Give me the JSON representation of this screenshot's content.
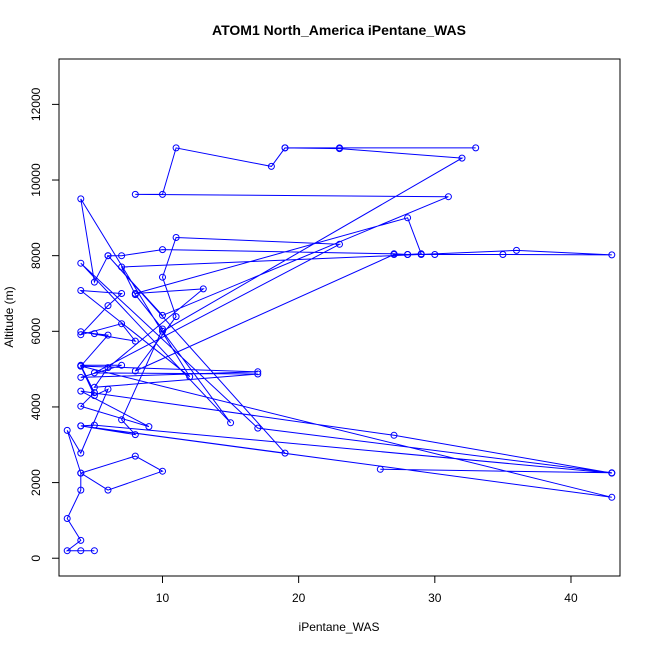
{
  "chart_data": {
    "type": "line",
    "title": "ATOM1 North_America iPentane_WAS",
    "xlabel": "iPentane_WAS",
    "ylabel": "Altitude (m)",
    "xlim": [
      2.4,
      43.6
    ],
    "ylim": [
      -470,
      13200
    ],
    "xticks": [
      10,
      20,
      30,
      40
    ],
    "yticks": [
      0,
      2000,
      4000,
      6000,
      8000,
      10000,
      12000
    ],
    "grid": false,
    "legend": "none",
    "color": "#0000ff",
    "series": [
      {
        "x": [
          4,
          5,
          3,
          4,
          3,
          4,
          4,
          8,
          10,
          6,
          4,
          3,
          4,
          6,
          5,
          4,
          43,
          4,
          5,
          43,
          27,
          4,
          9,
          4,
          5,
          4,
          7,
          4,
          17,
          4,
          6,
          5,
          4,
          8,
          7,
          4,
          6,
          7,
          4,
          12,
          4,
          5,
          6,
          19,
          4,
          8,
          7,
          10,
          8,
          7,
          36,
          43,
          35,
          30,
          29,
          28,
          27,
          8,
          11,
          10,
          11,
          23,
          5,
          17,
          5,
          6,
          13,
          8,
          28,
          29,
          28,
          27,
          10,
          7,
          6,
          10,
          31,
          8,
          10,
          11,
          18,
          19,
          23,
          33,
          19,
          23,
          32,
          10,
          15,
          4,
          17,
          43,
          26
        ],
        "y": [
          200,
          200,
          200,
          470,
          1050,
          1800,
          2250,
          2700,
          2300,
          1800,
          2250,
          3380,
          2780,
          4470,
          4300,
          5080,
          1610,
          3500,
          3520,
          2250,
          3250,
          4420,
          3480,
          4020,
          4380,
          5100,
          5100,
          4780,
          4930,
          5080,
          5900,
          5940,
          5990,
          5740,
          6200,
          5910,
          6680,
          7000,
          7080,
          4800,
          9500,
          7300,
          8000,
          2780,
          3500,
          3270,
          3660,
          6060,
          6970,
          7700,
          8140,
          8020,
          8030,
          8030,
          8030,
          8030,
          8030,
          4950,
          6390,
          7430,
          8480,
          8300,
          4900,
          4870,
          4520,
          5040,
          7120,
          7000,
          9000,
          8050,
          8030,
          8050,
          8160,
          8000,
          8000,
          6420,
          9560,
          9620,
          9620,
          10850,
          10360,
          10850,
          10850,
          10850,
          10850,
          10830,
          10580,
          6000,
          3580,
          7800,
          3440,
          2260,
          2350
        ]
      }
    ]
  }
}
